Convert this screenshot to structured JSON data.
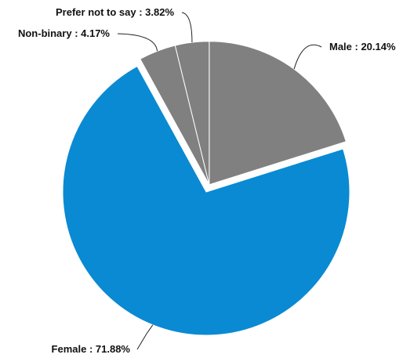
{
  "chart_data": {
    "type": "pie",
    "title": "",
    "slices": [
      {
        "label": "Male",
        "value": 20.14,
        "display": "Male : 20.14%",
        "color": "#808080"
      },
      {
        "label": "Female",
        "value": 71.88,
        "display": "Female : 71.88%",
        "color": "#0A8AD2"
      },
      {
        "label": "Non-binary",
        "value": 4.17,
        "display": "Non-binary : 4.17%",
        "color": "#808080"
      },
      {
        "label": "Prefer not to say",
        "value": 3.82,
        "display": "Prefer not to say : 3.82%",
        "color": "#808080"
      }
    ],
    "exploded": [
      "Male",
      "Non-binary",
      "Prefer not to say"
    ],
    "slice_border_color": "#ffffff",
    "legend": "none",
    "labels": "outside with leader lines"
  }
}
